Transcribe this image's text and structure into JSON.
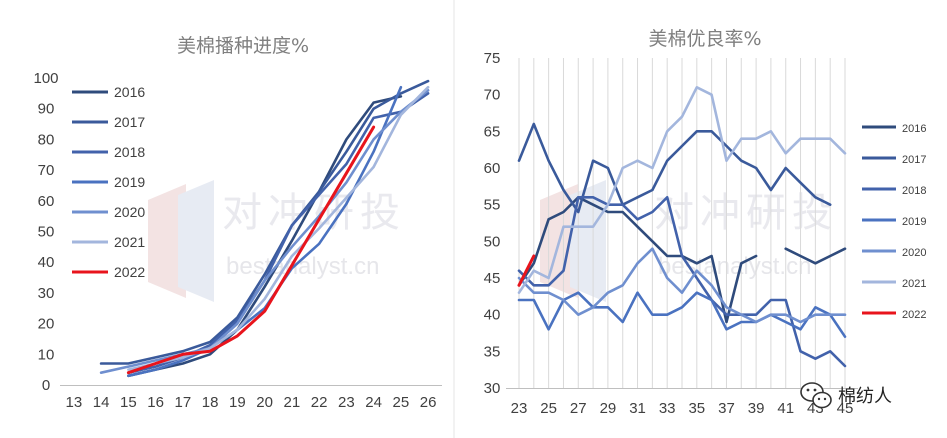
{
  "watermark": {
    "cn": "对冲研投",
    "en": "bestanalyst.cn"
  },
  "brand": {
    "text": "棉纺人",
    "icon": "wechat-icon"
  },
  "chart_data": [
    {
      "type": "line",
      "title": "美棉播种进度%",
      "xlabel": "",
      "ylabel": "",
      "x_ticks": [
        13,
        14,
        15,
        16,
        17,
        18,
        19,
        20,
        21,
        22,
        23,
        24,
        25,
        26
      ],
      "y_ticks": [
        0,
        10,
        20,
        30,
        40,
        50,
        60,
        70,
        80,
        90,
        100
      ],
      "xlim": [
        13,
        26
      ],
      "ylim": [
        0,
        100
      ],
      "legend": "left",
      "series": [
        {
          "name": "2016",
          "color": "#2f4b7c",
          "x": [
            15,
            16,
            17,
            18,
            19,
            20,
            21,
            22,
            23,
            24,
            25
          ],
          "y": [
            3,
            5,
            7,
            10,
            18,
            32,
            47,
            63,
            80,
            92,
            94
          ]
        },
        {
          "name": "2017",
          "color": "#3a5a9b",
          "x": [
            14,
            15,
            16,
            17,
            18,
            19,
            20,
            21,
            22,
            23,
            24,
            25,
            26
          ],
          "y": [
            7,
            7,
            9,
            11,
            14,
            22,
            36,
            52,
            63,
            76,
            90,
            95,
            99
          ]
        },
        {
          "name": "2018",
          "color": "#4262ab",
          "x": [
            15,
            16,
            17,
            18,
            19,
            20,
            21,
            22,
            23,
            24,
            25,
            26
          ],
          "y": [
            4,
            6,
            9,
            13,
            21,
            34,
            52,
            62,
            72,
            87,
            89,
            95
          ]
        },
        {
          "name": "2019",
          "color": "#4a72c0",
          "x": [
            15,
            16,
            17,
            18,
            19,
            20,
            21,
            22,
            23,
            24,
            25
          ],
          "y": [
            3,
            5,
            8,
            12,
            18,
            25,
            38,
            46,
            59,
            76,
            97
          ]
        },
        {
          "name": "2020",
          "color": "#6f8fcf",
          "x": [
            14,
            15,
            16,
            17,
            18,
            19,
            20,
            21,
            22,
            23,
            24,
            25,
            26
          ],
          "y": [
            4,
            6,
            8,
            10,
            12,
            20,
            34,
            45,
            55,
            66,
            80,
            89,
            96
          ]
        },
        {
          "name": "2021",
          "color": "#a3b6dd",
          "x": [
            15,
            16,
            17,
            18,
            19,
            20,
            21,
            22,
            23,
            24,
            25,
            26
          ],
          "y": [
            5,
            7,
            9,
            12,
            18,
            28,
            42,
            51,
            61,
            71,
            88,
            97
          ]
        },
        {
          "name": "2022",
          "color": "#e8141c",
          "x": [
            15,
            16,
            17,
            18,
            19,
            20,
            21,
            22,
            23,
            24
          ],
          "y": [
            4,
            7,
            10,
            11,
            16,
            24,
            39,
            54,
            69,
            84
          ]
        }
      ]
    },
    {
      "type": "line",
      "title": "美棉优良率%",
      "xlabel": "",
      "ylabel": "",
      "x_ticks": [
        23,
        25,
        27,
        29,
        31,
        33,
        35,
        37,
        39,
        41,
        43,
        45
      ],
      "y_ticks": [
        30,
        35,
        40,
        45,
        50,
        55,
        60,
        65,
        70,
        75
      ],
      "xlim": [
        23,
        45
      ],
      "ylim": [
        30,
        75
      ],
      "grid": true,
      "legend": "right",
      "series": [
        {
          "name": "2016",
          "color": "#2f4b7c",
          "x": [
            23,
            24,
            25,
            26,
            27,
            28,
            29,
            30,
            31,
            32,
            33,
            34,
            35,
            36,
            37,
            38,
            39,
            40,
            41,
            42,
            43,
            44,
            45
          ],
          "y": [
            44,
            47,
            53,
            54,
            56,
            55,
            54,
            54,
            52,
            50,
            48,
            48,
            47,
            48,
            39,
            47,
            48,
            null,
            49,
            48,
            47,
            48,
            49
          ]
        },
        {
          "name": "2017",
          "color": "#3a5a9b",
          "x": [
            23,
            24,
            25,
            26,
            27,
            28,
            29,
            30,
            31,
            32,
            33,
            34,
            35,
            36,
            37,
            38,
            39,
            40,
            41,
            42,
            43,
            44
          ],
          "y": [
            61,
            66,
            61,
            57,
            54,
            61,
            60,
            55,
            56,
            57,
            61,
            63,
            65,
            65,
            63,
            61,
            60,
            57,
            60,
            58,
            56,
            55
          ]
        },
        {
          "name": "2018",
          "color": "#4262ab",
          "x": [
            23,
            24,
            25,
            26,
            27,
            28,
            29,
            30,
            31,
            32,
            33,
            34,
            35,
            36,
            37,
            38,
            39,
            40,
            41,
            42,
            43,
            44,
            45
          ],
          "y": [
            46,
            44,
            44,
            46,
            56,
            56,
            55,
            55,
            53,
            54,
            56,
            48,
            45,
            42,
            40,
            40,
            40,
            42,
            42,
            35,
            34,
            35,
            33
          ]
        },
        {
          "name": "2019",
          "color": "#4a72c0",
          "x": [
            23,
            24,
            25,
            26,
            27,
            28,
            29,
            30,
            31,
            32,
            33,
            34,
            35,
            36,
            37,
            38,
            39,
            40,
            41,
            42,
            43,
            44,
            45
          ],
          "y": [
            42,
            42,
            38,
            42,
            43,
            41,
            41,
            39,
            43,
            40,
            40,
            41,
            43,
            42,
            38,
            39,
            39,
            40,
            39,
            38,
            41,
            40,
            37
          ]
        },
        {
          "name": "2020",
          "color": "#6f8fcf",
          "x": [
            23,
            24,
            25,
            26,
            27,
            28,
            29,
            30,
            31,
            32,
            33,
            34,
            35,
            36,
            37,
            38,
            39,
            40,
            41,
            42,
            43,
            44,
            45
          ],
          "y": [
            45,
            43,
            43,
            42,
            40,
            41,
            43,
            44,
            47,
            49,
            45,
            43,
            46,
            44,
            41,
            40,
            39,
            40,
            40,
            39,
            40,
            40,
            40
          ]
        },
        {
          "name": "2021",
          "color": "#a3b6dd",
          "x": [
            23,
            24,
            25,
            26,
            27,
            28,
            29,
            30,
            31,
            32,
            33,
            34,
            35,
            36,
            37,
            38,
            39,
            40,
            41,
            42,
            43,
            44,
            45
          ],
          "y": [
            43,
            46,
            45,
            52,
            52,
            52,
            55,
            60,
            61,
            60,
            65,
            67,
            71,
            70,
            61,
            64,
            64,
            65,
            62,
            64,
            64,
            64,
            62
          ]
        },
        {
          "name": "2022",
          "color": "#e8141c",
          "x": [
            23,
            24
          ],
          "y": [
            44,
            48
          ]
        }
      ]
    }
  ]
}
